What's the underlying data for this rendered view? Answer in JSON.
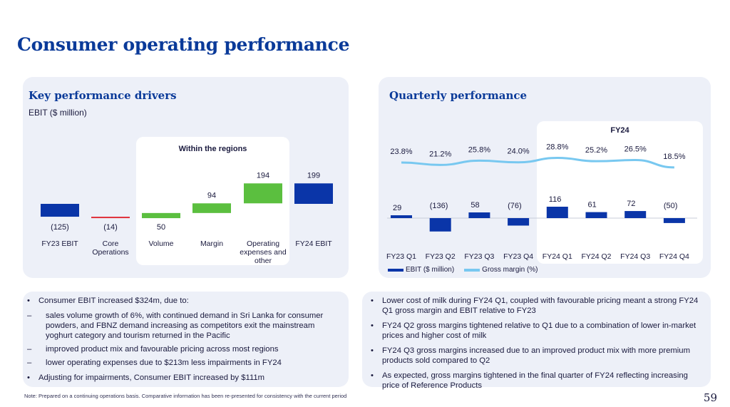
{
  "page": {
    "title": "Consumer operating performance",
    "footnote": "Note: Prepared on a continuing operations basis. Comparative information has been re-presented for consistency with the current period",
    "page_number": "59"
  },
  "left_panel": {
    "heading": "Key performance drivers",
    "subheading": "EBIT ($ million)",
    "highlight_label": "Within the regions"
  },
  "right_panel": {
    "heading": "Quarterly performance",
    "highlight_label": "FY24"
  },
  "colors": {
    "navy": "#0a35a8",
    "green": "#5bbf3f",
    "red": "#e0323c",
    "light_blue": "#78c8f0",
    "heading": "#0a3a99"
  },
  "chart_data": [
    {
      "type": "bar",
      "subtype": "waterfall",
      "title": "EBIT ($ million)",
      "categories": [
        "FY23 EBIT",
        "Core Operations",
        "Volume",
        "Margin",
        "Operating expenses and other",
        "FY24 EBIT"
      ],
      "values": [
        -125,
        -14,
        50,
        94,
        194,
        199
      ],
      "value_labels": [
        "(125)",
        "(14)",
        "50",
        "94",
        "194",
        "199"
      ],
      "kinds": [
        "total",
        "delta",
        "delta",
        "delta",
        "delta",
        "total"
      ],
      "bar_colors": [
        "#0a35a8",
        "#e0323c",
        "#5bbf3f",
        "#5bbf3f",
        "#5bbf3f",
        "#0a35a8"
      ],
      "category_lines": [
        [
          "FY23 EBIT"
        ],
        [
          "Core",
          "Operations"
        ],
        [
          "Volume"
        ],
        [
          "Margin"
        ],
        [
          "Operating",
          "expenses and",
          "other"
        ],
        [
          "FY24 EBIT"
        ]
      ]
    },
    {
      "type": "bar",
      "categories": [
        "FY23 Q1",
        "FY23 Q2",
        "FY23 Q3",
        "FY23 Q4",
        "FY24 Q1",
        "FY24 Q2",
        "FY24 Q3",
        "FY24 Q4"
      ],
      "series": [
        {
          "name": "EBIT ($ million)",
          "type": "bar",
          "values": [
            29,
            -136,
            58,
            -76,
            116,
            61,
            72,
            -50
          ],
          "labels": [
            "29",
            "(136)",
            "58",
            "(76)",
            "116",
            "61",
            "72",
            "(50)"
          ]
        },
        {
          "name": "Gross margin (%)",
          "type": "line",
          "values": [
            23.8,
            21.2,
            25.8,
            24.0,
            28.8,
            25.2,
            26.5,
            18.5
          ],
          "labels": [
            "23.8%",
            "21.2%",
            "25.8%",
            "24.0%",
            "28.8%",
            "25.2%",
            "26.5%",
            "18.5%"
          ]
        }
      ]
    }
  ],
  "bullets_left": [
    {
      "level": 1,
      "text": "Consumer EBIT increased $324m, due to:"
    },
    {
      "level": 2,
      "text": "sales volume growth of 6%, with continued demand in Sri Lanka for consumer powders, and FBNZ demand increasing as competitors exit the mainstream yoghurt category and tourism returned in the Pacific"
    },
    {
      "level": 2,
      "text": "improved product mix and favourable pricing across most regions"
    },
    {
      "level": 2,
      "text": "lower operating expenses due to $213m less impairments in FY24"
    },
    {
      "level": 1,
      "text": "Adjusting for impairments, Consumer EBIT increased by $111m"
    }
  ],
  "bullets_right": [
    {
      "level": 1,
      "text": "Lower cost of milk during FY24 Q1, coupled with favourable pricing meant a strong FY24 Q1 gross margin and EBIT relative to FY23"
    },
    {
      "level": 1,
      "text": "FY24 Q2 gross margins tightened relative to Q1 due to a combination of lower in-market prices and higher cost of milk"
    },
    {
      "level": 1,
      "text": "FY24 Q3 gross margins increased due to an improved product mix with more premium products sold compared to Q2"
    },
    {
      "level": 1,
      "text": "As expected, gross margins tightened in the final quarter of FY24 reflecting increasing price of Reference Products"
    }
  ]
}
